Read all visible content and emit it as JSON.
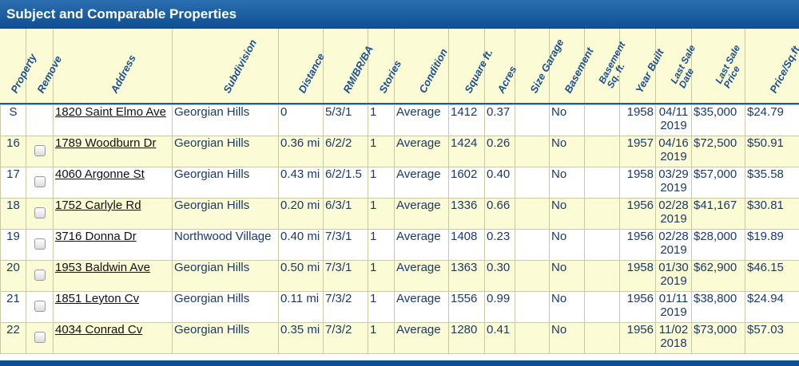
{
  "title": "Subject and Comparable Properties",
  "columns": [
    {
      "key": "property",
      "label": "Property"
    },
    {
      "key": "remove",
      "label": "Remove"
    },
    {
      "key": "address",
      "label": "Address"
    },
    {
      "key": "subdivision",
      "label": "Subdivision"
    },
    {
      "key": "distance",
      "label": "Distance"
    },
    {
      "key": "rmbrba",
      "label": "RM/BR/BA"
    },
    {
      "key": "stories",
      "label": "Stories"
    },
    {
      "key": "condition",
      "label": "Condition"
    },
    {
      "key": "sqft",
      "label": "Square ft."
    },
    {
      "key": "acres",
      "label": "Acres"
    },
    {
      "key": "garage",
      "label": "Size Garage"
    },
    {
      "key": "basement",
      "label": "Basement"
    },
    {
      "key": "basement_sqft",
      "label": "Basement",
      "label2": "Sq. ft."
    },
    {
      "key": "year_built",
      "label": "Year Built"
    },
    {
      "key": "last_sale_date",
      "label": "Last Sale",
      "label2": "Date"
    },
    {
      "key": "last_sale_price",
      "label": "Last Sale",
      "label2": "Price"
    },
    {
      "key": "price_sqft",
      "label": "Price/Sq.ft."
    }
  ],
  "rows": [
    {
      "property": "S",
      "remove": false,
      "address": "1820 Saint Elmo Ave",
      "subdivision": "Georgian Hills",
      "distance": "0",
      "rmbrba": "5/3/1",
      "stories": "1",
      "condition": "Average",
      "sqft": "1412",
      "acres": "0.37",
      "garage": "",
      "basement": "No",
      "basement_sqft": "",
      "year_built": "1958",
      "last_sale_date": "04/11 2019",
      "last_sale_price": "$35,000",
      "price_sqft": "$24.79"
    },
    {
      "property": "16",
      "remove": true,
      "address": "1789 Woodburn Dr",
      "subdivision": "Georgian Hills",
      "distance": "0.36 mi",
      "rmbrba": "6/2/2",
      "stories": "1",
      "condition": "Average",
      "sqft": "1424",
      "acres": "0.26",
      "garage": "",
      "basement": "No",
      "basement_sqft": "",
      "year_built": "1957",
      "last_sale_date": "04/16 2019",
      "last_sale_price": "$72,500",
      "price_sqft": "$50.91"
    },
    {
      "property": "17",
      "remove": true,
      "address": "4060 Argonne St",
      "subdivision": "Georgian Hills",
      "distance": "0.43 mi",
      "rmbrba": "6/2/1.5",
      "stories": "1",
      "condition": "Average",
      "sqft": "1602",
      "acres": "0.40",
      "garage": "",
      "basement": "No",
      "basement_sqft": "",
      "year_built": "1958",
      "last_sale_date": "03/29 2019",
      "last_sale_price": "$57,000",
      "price_sqft": "$35.58"
    },
    {
      "property": "18",
      "remove": true,
      "address": "1752 Carlyle Rd",
      "subdivision": "Georgian Hills",
      "distance": "0.20 mi",
      "rmbrba": "6/3/1",
      "stories": "1",
      "condition": "Average",
      "sqft": "1336",
      "acres": "0.66",
      "garage": "",
      "basement": "No",
      "basement_sqft": "",
      "year_built": "1956",
      "last_sale_date": "02/28 2019",
      "last_sale_price": "$41,167",
      "price_sqft": "$30.81"
    },
    {
      "property": "19",
      "remove": true,
      "address": "3716 Donna Dr",
      "subdivision": "Northwood Village",
      "distance": "0.40 mi",
      "rmbrba": "7/3/1",
      "stories": "1",
      "condition": "Average",
      "sqft": "1408",
      "acres": "0.23",
      "garage": "",
      "basement": "No",
      "basement_sqft": "",
      "year_built": "1956",
      "last_sale_date": "02/28 2019",
      "last_sale_price": "$28,000",
      "price_sqft": "$19.89"
    },
    {
      "property": "20",
      "remove": true,
      "address": "1953 Baldwin Ave",
      "subdivision": "Georgian Hills",
      "distance": "0.50 mi",
      "rmbrba": "7/3/1",
      "stories": "1",
      "condition": "Average",
      "sqft": "1363",
      "acres": "0.30",
      "garage": "",
      "basement": "No",
      "basement_sqft": "",
      "year_built": "1958",
      "last_sale_date": "01/30 2019",
      "last_sale_price": "$62,900",
      "price_sqft": "$46.15"
    },
    {
      "property": "21",
      "remove": true,
      "address": "1851 Leyton Cv",
      "subdivision": "Georgian Hills",
      "distance": "0.11 mi",
      "rmbrba": "7/3/2",
      "stories": "1",
      "condition": "Average",
      "sqft": "1556",
      "acres": "0.99",
      "garage": "",
      "basement": "No",
      "basement_sqft": "",
      "year_built": "1956",
      "last_sale_date": "01/11 2019",
      "last_sale_price": "$38,800",
      "price_sqft": "$24.94"
    },
    {
      "property": "22",
      "remove": true,
      "address": "4034 Conrad Cv",
      "subdivision": "Georgian Hills",
      "distance": "0.35 mi",
      "rmbrba": "7/3/2",
      "stories": "1",
      "condition": "Average",
      "sqft": "1280",
      "acres": "0.41",
      "garage": "",
      "basement": "No",
      "basement_sqft": "",
      "year_built": "1956",
      "last_sale_date": "11/02 2018",
      "last_sale_price": "$73,000",
      "price_sqft": "$57.03"
    }
  ]
}
